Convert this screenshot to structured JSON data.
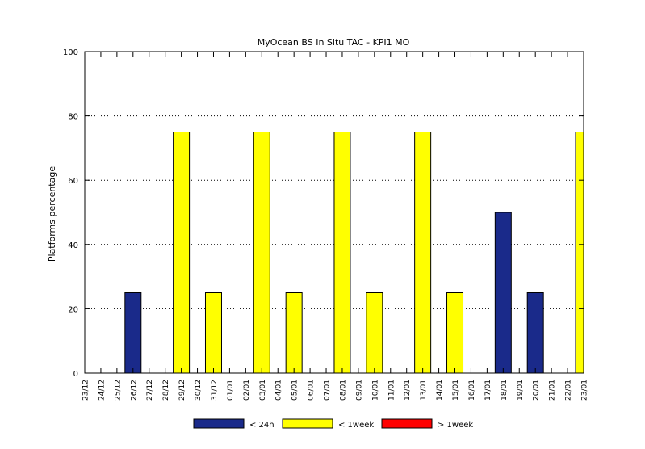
{
  "chart_data": {
    "type": "bar",
    "title": "MyOcean  BS In Situ TAC - KPI1  MO",
    "xlabel": "",
    "ylabel": "Platforms percentage",
    "ylim": [
      0,
      100
    ],
    "yticks": [
      0,
      20,
      40,
      60,
      80,
      100
    ],
    "grid": "horizontal-dotted",
    "legend_position": "bottom",
    "categories": [
      "23/12",
      "24/12",
      "25/12",
      "26/12",
      "27/12",
      "28/12",
      "29/12",
      "30/12",
      "31/12",
      "01/01",
      "02/01",
      "03/01",
      "04/01",
      "05/01",
      "06/01",
      "07/01",
      "08/01",
      "09/01",
      "10/01",
      "11/01",
      "12/01",
      "13/01",
      "14/01",
      "15/01",
      "16/01",
      "17/01",
      "18/01",
      "19/01",
      "20/01",
      "21/01",
      "22/01",
      "23/01"
    ],
    "series": [
      {
        "name": "< 24h",
        "color": "#1a2a8a",
        "values": [
          0,
          0,
          0,
          25,
          0,
          0,
          0,
          0,
          0,
          0,
          0,
          0,
          0,
          0,
          0,
          0,
          0,
          0,
          0,
          0,
          0,
          0,
          0,
          0,
          0,
          0,
          50,
          0,
          25,
          0,
          0,
          0
        ]
      },
      {
        "name": "< 1week",
        "color": "#ffff00",
        "values": [
          0,
          0,
          0,
          0,
          0,
          0,
          75,
          0,
          25,
          0,
          0,
          75,
          0,
          25,
          0,
          0,
          75,
          0,
          25,
          0,
          0,
          75,
          0,
          25,
          0,
          0,
          0,
          0,
          0,
          0,
          0,
          75
        ]
      },
      {
        "name": "> 1week",
        "color": "#ff0000",
        "values": [
          0,
          0,
          0,
          0,
          0,
          0,
          0,
          0,
          0,
          0,
          0,
          0,
          0,
          0,
          0,
          0,
          0,
          0,
          0,
          0,
          0,
          0,
          0,
          0,
          0,
          0,
          0,
          0,
          0,
          0,
          0,
          0
        ]
      }
    ]
  }
}
